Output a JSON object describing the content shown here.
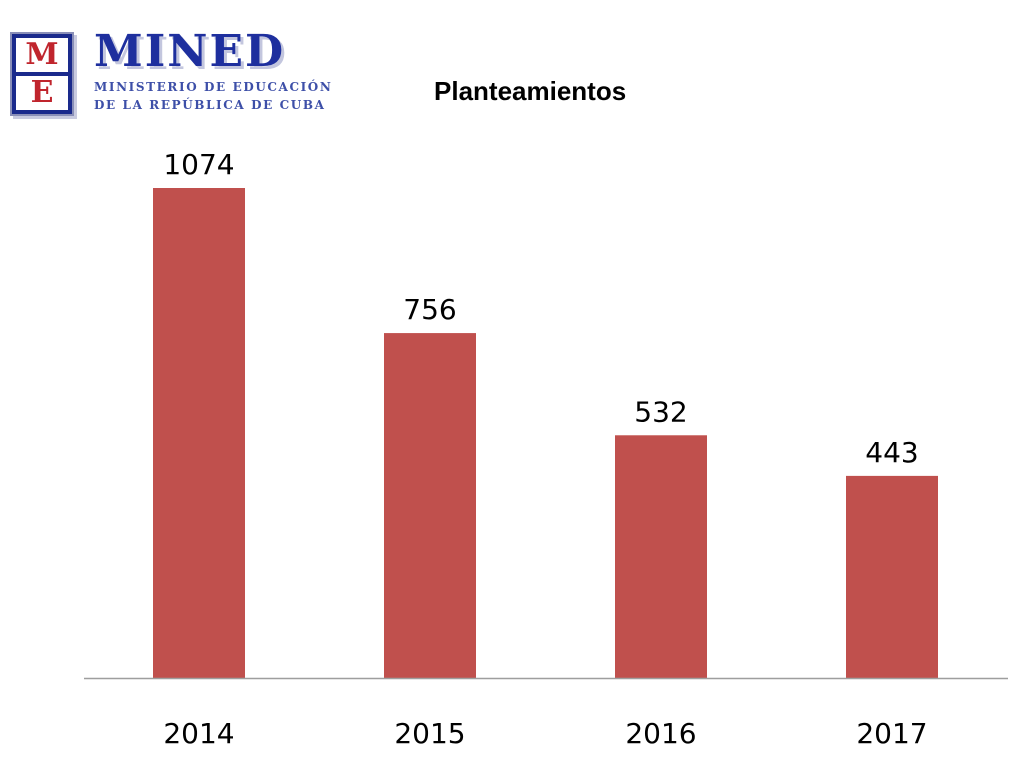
{
  "logo": {
    "letters": [
      "M",
      "E"
    ],
    "name": "MINED",
    "subtitle_line1": "MINISTERIO DE EDUCACIÓN",
    "subtitle_line2": "DE LA REPÚBLICA DE CUBA"
  },
  "chart_data": {
    "type": "bar",
    "title": "Planteamientos",
    "categories": [
      "2014",
      "2015",
      "2016",
      "2017"
    ],
    "values": [
      1074,
      756,
      532,
      443
    ],
    "data_labels": [
      "1074",
      "756",
      "532",
      "443"
    ],
    "xlabel": "",
    "ylabel": "",
    "ylim": [
      0,
      1100
    ],
    "grid": false,
    "legend": "none",
    "bar_color": "#c0504d",
    "axis_color": "#9e9e9e"
  }
}
